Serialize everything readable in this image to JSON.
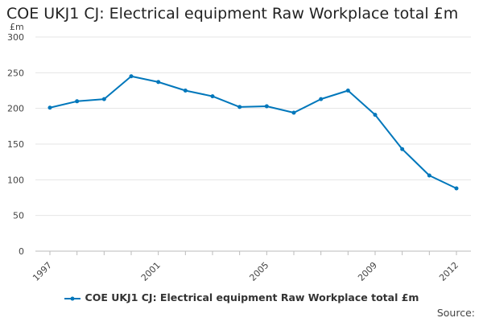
{
  "chart_data": {
    "type": "line",
    "title": "COE UKJ1 CJ: Electrical equipment Raw Workplace total £m",
    "ylabel": "£m",
    "xlabel": "",
    "x": [
      1997,
      1998,
      1999,
      2000,
      2001,
      2002,
      2003,
      2004,
      2005,
      2006,
      2007,
      2008,
      2009,
      2010,
      2011,
      2012
    ],
    "x_tick_labels": [
      "1997",
      "2001",
      "2005",
      "2009",
      "2012"
    ],
    "y_ticks": [
      0,
      50,
      100,
      150,
      200,
      250,
      300
    ],
    "ylim": [
      0,
      300
    ],
    "grid": true,
    "legend_position": "bottom-center",
    "series": [
      {
        "name": "COE UKJ1 CJ: Electrical equipment Raw Workplace total £m",
        "color": "#0077bb",
        "values": [
          201,
          210,
          213,
          245,
          237,
          225,
          217,
          202,
          203,
          194,
          213,
          225,
          191,
          143,
          106,
          88
        ]
      }
    ]
  },
  "source_label": "Source:"
}
